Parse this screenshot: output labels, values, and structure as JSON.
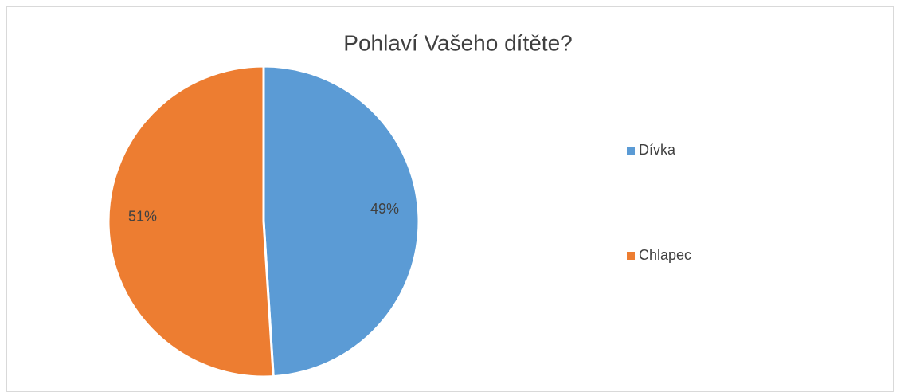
{
  "chart_data": {
    "type": "pie",
    "title": "Pohlaví Vašeho dítěte?",
    "categories": [
      "Dívka",
      "Chlapec"
    ],
    "values": [
      49,
      51
    ],
    "value_labels": [
      "49%",
      "51%"
    ],
    "colors": [
      "#5b9bd5",
      "#ed7d31"
    ],
    "legend": "right"
  }
}
